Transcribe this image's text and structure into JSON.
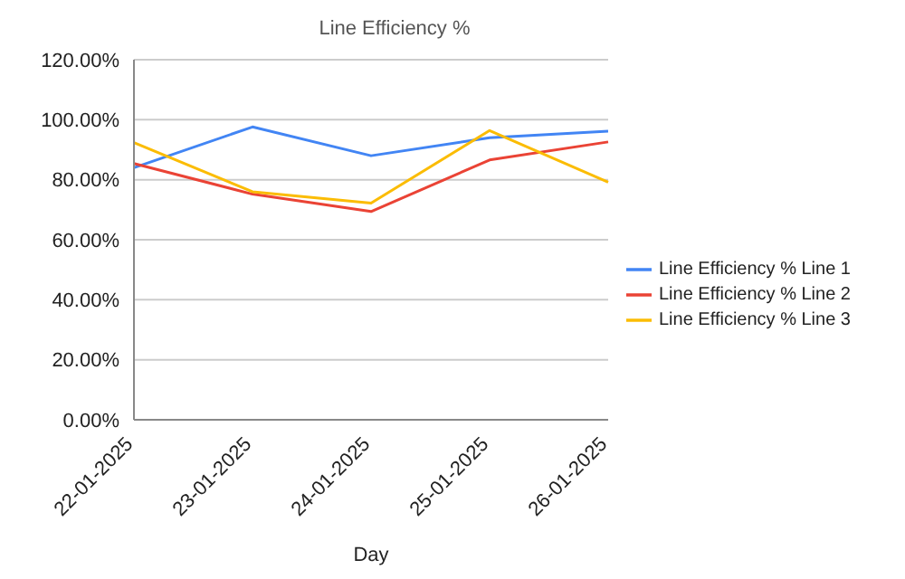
{
  "chart_data": {
    "type": "line",
    "title": "Line Efficiency %",
    "xlabel": "Day",
    "categories": [
      "22-01-2025",
      "23-01-2025",
      "24-01-2025",
      "25-01-2025",
      "26-01-2025"
    ],
    "series": [
      {
        "name": "Line Efficiency % Line 1",
        "color": "#4285f4",
        "values": [
          84.0,
          97.6,
          88.0,
          94.0,
          96.2
        ]
      },
      {
        "name": "Line Efficiency % Line 2",
        "color": "#ea4335",
        "values": [
          85.4,
          75.2,
          69.4,
          86.6,
          92.6
        ]
      },
      {
        "name": "Line Efficiency % Line 3",
        "color": "#fbbc04",
        "values": [
          92.4,
          76.0,
          72.2,
          96.4,
          79.2
        ]
      }
    ],
    "ylim": [
      0,
      120
    ],
    "yticks": [
      {
        "value": 0,
        "label": "0.00%"
      },
      {
        "value": 20,
        "label": "20.00%"
      },
      {
        "value": 40,
        "label": "40.00%"
      },
      {
        "value": 60,
        "label": "60.00%"
      },
      {
        "value": 80,
        "label": "80.00%"
      },
      {
        "value": 100,
        "label": "100.00%"
      },
      {
        "value": 120,
        "label": "120.00%"
      }
    ],
    "grid": "y",
    "legend": "right",
    "marker": "none"
  }
}
